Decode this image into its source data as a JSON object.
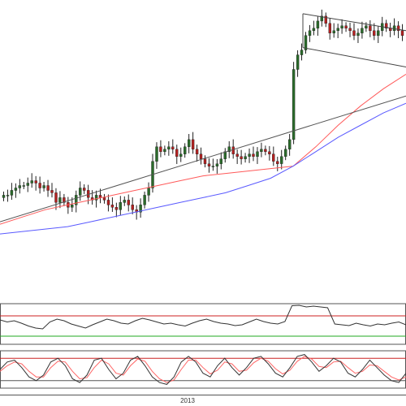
{
  "chart_data": {
    "type": "candlestick-with-indicators",
    "x_axis": {
      "tick_labels": [
        "2013"
      ]
    },
    "price_panel": {
      "candles_close": [
        6.6,
        6.6,
        6.8,
        6.9,
        7.0,
        7.0,
        7.1,
        7.2,
        7.1,
        6.9,
        7.0,
        6.8,
        6.7,
        6.3,
        6.5,
        6.3,
        6.1,
        6.2,
        6.6,
        6.9,
        6.8,
        6.5,
        6.4,
        6.6,
        6.5,
        6.4,
        6.2,
        6.1,
        6.0,
        6.3,
        6.4,
        6.2,
        6.0,
        5.9,
        6.2,
        6.6,
        6.9,
        8.0,
        8.6,
        8.4,
        8.5,
        8.6,
        8.5,
        8.2,
        8.3,
        8.6,
        8.9,
        8.5,
        8.3,
        8.1,
        7.9,
        7.8,
        7.8,
        7.9,
        8.1,
        8.4,
        8.6,
        8.3,
        8.2,
        8.1,
        8.2,
        8.3,
        8.2,
        8.4,
        8.5,
        8.4,
        8.3,
        8.0,
        7.9,
        8.2,
        8.5,
        8.9,
        11.8,
        12.4,
        12.6,
        13.2,
        13.4,
        13.5,
        13.8,
        14.0,
        13.7,
        13.3,
        13.4,
        13.5,
        13.6,
        13.5,
        13.4,
        13.2,
        13.3,
        13.5,
        13.6,
        13.4,
        13.2,
        13.4,
        13.7,
        13.5,
        13.4,
        13.6,
        13.4,
        13.2
      ],
      "moving_average_red": [
        5.4,
        5.7,
        6.0,
        6.2,
        6.4,
        6.6,
        6.8,
        7.0,
        7.2,
        7.4,
        7.5,
        7.6,
        7.7,
        7.8,
        8.6,
        9.5,
        10.3,
        11.0,
        11.6
      ],
      "moving_average_blue": [
        5.0,
        5.1,
        5.2,
        5.3,
        5.5,
        5.7,
        5.9,
        6.1,
        6.3,
        6.5,
        6.7,
        7.0,
        7.3,
        7.8,
        8.4,
        9.0,
        9.5,
        10.0,
        10.4
      ],
      "trendline_black": {
        "start": 5.5,
        "end": 10.7
      },
      "channel_upper": {
        "start": 14.1,
        "end": 13.4
      },
      "channel_lower": {
        "start": 12.7,
        "end": 11.9
      },
      "colors": {
        "candle_up": "#2a6b2a",
        "candle_down": "#b42020",
        "wick": "#222222",
        "ma_red": "#ff5a5a",
        "ma_blue": "#5a5aff",
        "trendline": "#555555",
        "channel": "#444444"
      }
    },
    "indicator_panel_1": {
      "series_black": [
        60,
        55,
        58,
        52,
        45,
        40,
        38,
        55,
        62,
        58,
        50,
        45,
        40,
        48,
        55,
        62,
        58,
        52,
        50,
        58,
        64,
        60,
        55,
        50,
        52,
        48,
        45,
        52,
        58,
        62,
        56,
        52,
        50,
        46,
        48,
        55,
        62,
        56,
        52,
        50,
        56,
        95,
        96,
        92,
        94,
        92,
        90,
        50,
        48,
        46,
        52,
        48,
        45,
        50,
        48,
        52,
        55,
        48
      ],
      "level_high_red": 70,
      "level_low_green": 20,
      "range": [
        0,
        100
      ],
      "colors": {
        "series": "#333333",
        "level_high": "#cc2222",
        "level_low": "#22aa22"
      }
    },
    "indicator_panel_2": {
      "series_black": [
        50,
        70,
        75,
        55,
        30,
        20,
        35,
        70,
        80,
        60,
        25,
        15,
        35,
        75,
        80,
        50,
        25,
        40,
        75,
        85,
        60,
        30,
        15,
        10,
        30,
        70,
        85,
        70,
        40,
        30,
        60,
        80,
        55,
        35,
        55,
        80,
        85,
        65,
        40,
        30,
        55,
        85,
        90,
        70,
        45,
        60,
        80,
        70,
        40,
        30,
        50,
        75,
        55,
        35,
        20,
        15,
        40
      ],
      "series_red": [
        45,
        60,
        70,
        65,
        45,
        30,
        30,
        55,
        72,
        70,
        45,
        25,
        28,
        55,
        75,
        65,
        40,
        35,
        60,
        78,
        72,
        45,
        25,
        15,
        22,
        50,
        75,
        75,
        55,
        38,
        48,
        70,
        65,
        45,
        48,
        68,
        80,
        72,
        52,
        38,
        48,
        72,
        85,
        78,
        58,
        55,
        70,
        72,
        55,
        40,
        45,
        62,
        60,
        45,
        30,
        22,
        30
      ],
      "level_high": 80,
      "level_low": 20,
      "range": [
        0,
        100
      ],
      "colors": {
        "series_black": "#333333",
        "series_red": "#ff6666",
        "level_high": "#cc2222",
        "level_low": "#555555"
      }
    }
  }
}
